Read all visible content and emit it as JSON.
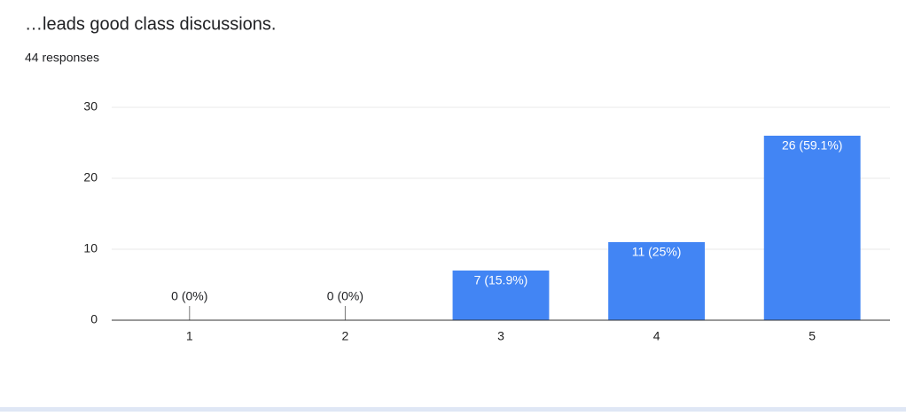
{
  "chart_data": {
    "type": "bar",
    "title": "…leads good class discussions.",
    "subtitle": "44 responses",
    "categories": [
      "1",
      "2",
      "3",
      "4",
      "5"
    ],
    "values": [
      0,
      0,
      7,
      11,
      26
    ],
    "value_labels": [
      "0 (0%)",
      "0 (0%)",
      "7 (15.9%)",
      "11 (25%)",
      "26 (59.1%)"
    ],
    "color": "#4285f4",
    "ylim": [
      0,
      30
    ],
    "yticks": [
      0,
      10,
      20,
      30
    ],
    "grid": true
  }
}
